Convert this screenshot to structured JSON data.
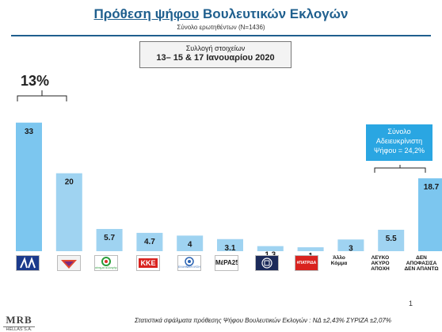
{
  "header": {
    "title_underlined": "Πρόθεση ψήφου",
    "title_rest": "Βουλευτικών Εκλογών",
    "sample": "Σύνολο ερωτηθέντων (N=1436)"
  },
  "fieldwork": {
    "line1": "Συλλογή στοιχείων",
    "line2": "13– 15 & 17 Ιανουαρίου 2020"
  },
  "chart_data": {
    "type": "bar",
    "categories": [
      "ΝΔ",
      "ΣΥΡΙΖΑ",
      "ΚΙΝΑΛ",
      "ΚΚΕ",
      "ΕΛΛΗΝΙΚΗ ΛΥΣΗ",
      "ΜέΡΑ25",
      "ΧΡΥΣΗ ΑΥΓΗ",
      "ΠΑΤΡΙΔΑ",
      "Άλλο Κόμμα",
      "ΛΕΥΚΟ ΑΚΥΡΟ ΑΠΟΧΗ",
      "ΔΕΝ ΑΠΟΦΑΣΙΣΑ ΔΕΝ ΑΠΑΝΤΩ"
    ],
    "values": [
      33,
      20,
      5.7,
      4.7,
      4,
      3.1,
      1.3,
      1,
      3,
      5.5,
      18.7
    ],
    "data_labels": [
      "33",
      "20",
      "5.7",
      "4.7",
      "4",
      "3.1",
      "1.3",
      "1",
      "3",
      "5.5",
      "18.7"
    ],
    "ylim": [
      0,
      36
    ],
    "grid": false,
    "annotations": {
      "difference": "13%",
      "undecided_total": [
        "Σύνολο",
        "Αδειευκρίνιστη",
        "Ψήφου = 24,2%"
      ]
    }
  },
  "logos": {
    "kinal_text": "κίνημα αλλαγής",
    "kke_text": "ΚΚΕ",
    "elliniki_text": "ΕΛΛΗΝΙΚΗ ΛΥΣΗ",
    "mera_text": "ΜέΡΑ25",
    "patrida_text": "#ΠΑΤΡΙΔΑ",
    "other": [
      "Άλλο",
      "Κόμμα"
    ],
    "blank": [
      "ΛΕΥΚΟ",
      "ΑΚΥΡΟ",
      "ΑΠΟΧΗ"
    ],
    "undecided": [
      "ΔΕΝ",
      "ΑΠΟΦΑΣΙΣΑ",
      "ΔΕΝ ΑΠΑΝΤΩ"
    ]
  },
  "colors": {
    "bar": "#9fd3f1",
    "bar_highlight": "#7cc6ef",
    "label": "#1a1a1a",
    "annotation": "#2aa6e2",
    "title": "#1f5f8e"
  },
  "footer": {
    "note": "Στατιστικά σφάλματα πρόθεσης Ψήφου Βουλευτικών Εκλογών : ΝΔ ±2,43% ΣΥΡΙΖΑ ±2,07%",
    "page": "1",
    "brand": "MRB",
    "brand_sub": "HELLAS S.A."
  }
}
